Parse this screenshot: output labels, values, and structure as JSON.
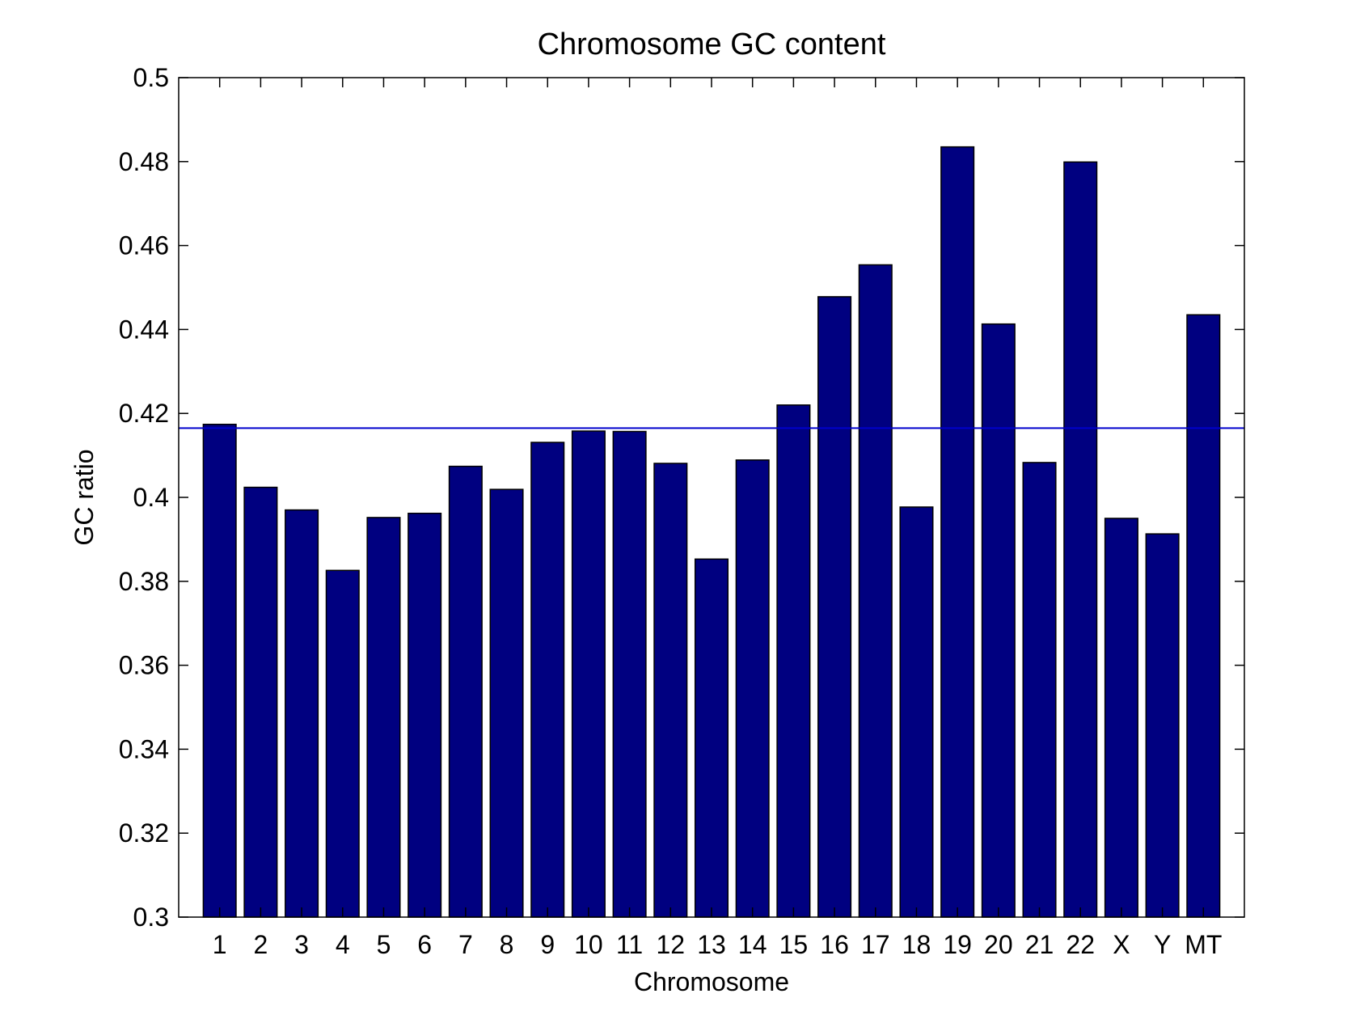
{
  "chart_data": {
    "type": "bar",
    "title": "Chromosome GC content",
    "xlabel": "Chromosome",
    "ylabel": "GC ratio",
    "categories": [
      "1",
      "2",
      "3",
      "4",
      "5",
      "6",
      "7",
      "8",
      "9",
      "10",
      "11",
      "12",
      "13",
      "14",
      "15",
      "16",
      "17",
      "18",
      "19",
      "20",
      "21",
      "22",
      "X",
      "Y",
      "MT"
    ],
    "values": [
      0.4174,
      0.4024,
      0.397,
      0.3826,
      0.3952,
      0.3962,
      0.4074,
      0.4019,
      0.4131,
      0.4158,
      0.4157,
      0.4081,
      0.3853,
      0.4089,
      0.422,
      0.4478,
      0.4554,
      0.3977,
      0.4835,
      0.4413,
      0.4083,
      0.4799,
      0.395,
      0.3913,
      0.4435
    ],
    "reference_line": 0.4165,
    "ylim": [
      0.3,
      0.5
    ],
    "yticks": [
      "0.3",
      "0.32",
      "0.34",
      "0.36",
      "0.38",
      "0.4",
      "0.42",
      "0.44",
      "0.46",
      "0.48",
      "0.5"
    ],
    "bar_color": "#000080",
    "line_color": "#0000cc",
    "grid": false,
    "legend": false
  }
}
